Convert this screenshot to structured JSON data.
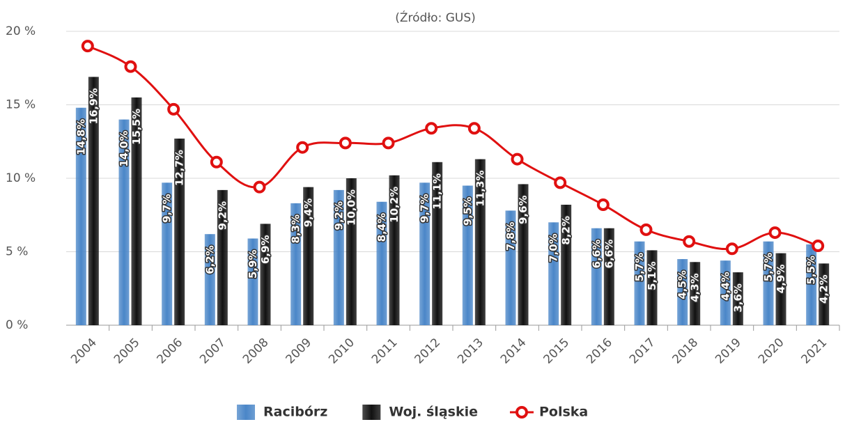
{
  "chart_data": {
    "type": "bar_line",
    "subtitle": "(Źródło: GUS)",
    "categories": [
      "2004",
      "2005",
      "2006",
      "2007",
      "2008",
      "2009",
      "2010",
      "2011",
      "2012",
      "2013",
      "2014",
      "2015",
      "2016",
      "2017",
      "2018",
      "2019",
      "2020",
      "2021"
    ],
    "series": [
      {
        "name": "Racibórz",
        "color": "#4a86c8",
        "type": "bar",
        "values": [
          14.8,
          14.0,
          9.7,
          6.2,
          5.9,
          8.3,
          9.2,
          8.4,
          9.7,
          9.5,
          7.8,
          7.0,
          6.6,
          5.7,
          4.5,
          4.4,
          5.7,
          5.5
        ],
        "value_labels": [
          "14,8%",
          "14,0%",
          "9,7%",
          "6,2%",
          "5,9%",
          "8,3%",
          "9,2%",
          "8,4%",
          "9,7%",
          "9,5%",
          "7,8%",
          "7,0%",
          "6,6%",
          "5,7%",
          "4,5%",
          "4,4%",
          "5,7%",
          "5,5%"
        ]
      },
      {
        "name": "Woj. śląskie",
        "color": "#111111",
        "type": "bar",
        "values": [
          16.9,
          15.5,
          12.7,
          9.2,
          6.9,
          9.4,
          10.0,
          10.2,
          11.1,
          11.3,
          9.6,
          8.2,
          6.6,
          5.1,
          4.3,
          3.6,
          4.9,
          4.2
        ],
        "value_labels": [
          "16,9%",
          "15,5%",
          "12,7%",
          "9,2%",
          "6,9%",
          "9,4%",
          "10,0%",
          "10,2%",
          "11,1%",
          "11,3%",
          "9,6%",
          "8,2%",
          "6,6%",
          "5,1%",
          "4,3%",
          "3,6%",
          "4,9%",
          "4,2%"
        ]
      },
      {
        "name": "Polska",
        "color": "#e01010",
        "type": "line",
        "values": [
          19.0,
          17.6,
          14.7,
          11.1,
          9.4,
          12.1,
          12.4,
          12.4,
          13.4,
          13.4,
          11.3,
          9.7,
          8.2,
          6.5,
          5.7,
          5.2,
          6.3,
          5.4
        ]
      }
    ],
    "ylim": [
      0,
      20
    ],
    "yticks": [
      {
        "value": 0,
        "label": "0 %"
      },
      {
        "value": 5,
        "label": "5 %"
      },
      {
        "value": 10,
        "label": "10 %"
      },
      {
        "value": 15,
        "label": "15 %"
      },
      {
        "value": 20,
        "label": "20 %"
      }
    ],
    "grid": true,
    "legend": "bottom"
  }
}
